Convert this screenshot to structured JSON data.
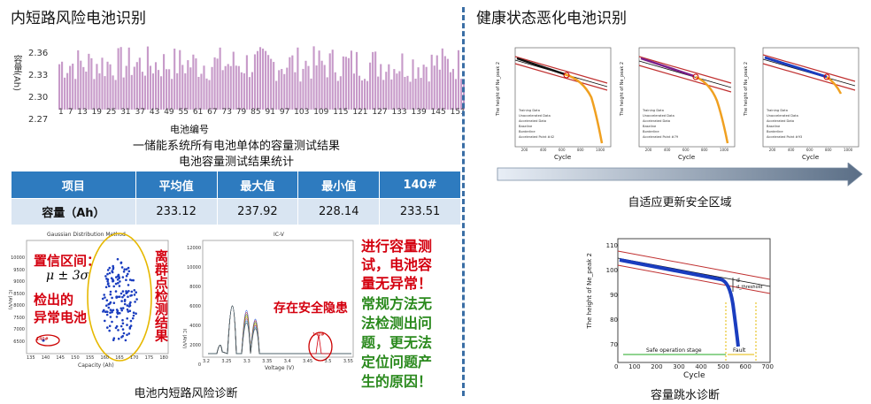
{
  "left": {
    "title": "内短路风险电池识别",
    "bar_chart": {
      "ylabel": "容量(Ah)",
      "xlabel": "电池编号",
      "yticks": [
        "2.36",
        "2.33",
        "2.30",
        "2.27"
      ],
      "xticks": [
        "1",
        "7",
        "13",
        "19",
        "25",
        "31",
        "37",
        "43",
        "49",
        "55",
        "61",
        "67",
        "73",
        "79",
        "85",
        "91",
        "97",
        "103",
        "109",
        "115",
        "121",
        "127",
        "133",
        "139",
        "145",
        "151"
      ],
      "caption1": "一储能系统所有电池单体的容量测试结果",
      "caption2": "电池容量测试结果统计"
    },
    "table": {
      "headers": [
        "项目",
        "平均值",
        "最大值",
        "最小值",
        "140#"
      ],
      "row": [
        "容量（Ah）",
        "233.12",
        "237.92",
        "228.14",
        "233.51"
      ]
    },
    "scatter": {
      "title": "Gaussian Distribution Method",
      "xlabel": "Capacity (Ah)",
      "ylabel": "IC (Ah/V)",
      "annot1": "置信区间：",
      "annot2": "μ ± 3σ",
      "annot3": "检出的",
      "annot4": "异常电池",
      "side": "离群点检测结果",
      "outlier": "140#",
      "xticks": [
        "135",
        "140",
        "145",
        "150",
        "155",
        "160",
        "165",
        "170",
        "175",
        "180"
      ],
      "yticks": [
        "10000",
        "9500",
        "9000",
        "8500",
        "8000",
        "7500",
        "7000",
        "6500",
        "6000"
      ]
    },
    "icv": {
      "title": "IC-V",
      "xlabel": "Voltage (V)",
      "ylabel": "IC (Ah/V)",
      "annot": "存在安全隐患",
      "outlier": "140#",
      "xticks": [
        "3.2",
        "3.25",
        "3.3",
        "3.35",
        "3.4",
        "3.45",
        "3.5",
        "3.55"
      ],
      "yticks": [
        "12000",
        "10000",
        "8000",
        "6000",
        "4000",
        "2000",
        "0"
      ]
    },
    "notes_red": [
      "进行容量测",
      "试，电池容",
      "量无异常！"
    ],
    "notes_green": [
      "常规方法无",
      "法检测出问",
      "题，更无法",
      "定位问题产",
      "生的原因！"
    ],
    "bottom_caption": "电池内短路风险诊断"
  },
  "right": {
    "title": "健康状态恶化电池识别",
    "arrow_caption": "自适应更新安全区域",
    "mini_plots": [
      {
        "ylabel": "The height of Ne_peak 2",
        "xlabel": "Cycle",
        "legend": [
          "Training Data",
          "Unaccelerated Data",
          "Accelerated Data",
          "Baseline",
          "Borderline",
          "Accelerated Point #42"
        ]
      },
      {
        "ylabel": "The height of Ne_peak 2",
        "xlabel": "Cycle",
        "legend": [
          "Training Data",
          "Unaccelerated Data",
          "Accelerated Data",
          "Baseline",
          "Borderline",
          "Accelerated Point #79"
        ]
      },
      {
        "ylabel": "The height of Ne_peak 2",
        "xlabel": "Cycle",
        "legend": [
          "Training Data",
          "Unaccelerated Data",
          "Accelerated Data",
          "Baseline",
          "Borderline",
          "Accelerated Point #93"
        ]
      }
    ],
    "mini_xticks": [
      "200",
      "400",
      "600",
      "800",
      "1000"
    ],
    "capacity_plot": {
      "ylabel": "The height of Ne_peak 2",
      "xlabel": "Cycle",
      "safe_label": "Safe operation stage",
      "fault_label": "Fault",
      "d1": "d",
      "d2": "d_threshold",
      "xticks": [
        "0",
        "100",
        "200",
        "300",
        "400",
        "500",
        "600",
        "700"
      ],
      "yticks": [
        "110",
        "100",
        "90",
        "80",
        "70"
      ]
    },
    "capacity_caption": "容量跳水诊断"
  }
}
